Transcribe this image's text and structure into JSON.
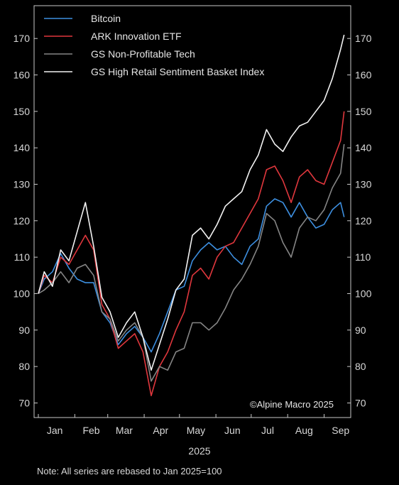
{
  "chart_data": {
    "type": "line",
    "xlabel": "2025",
    "x_ticks": [
      "Jan",
      "Feb",
      "Mar",
      "Apr",
      "May",
      "Jun",
      "Jul",
      "Aug",
      "Sep"
    ],
    "y_ticks": [
      70,
      80,
      90,
      100,
      110,
      120,
      130,
      140,
      150,
      160,
      170
    ],
    "ylim": [
      66,
      179
    ],
    "xlim": [
      "2025-01-01",
      "2025-09-20"
    ],
    "grid": false,
    "legend_position": "top-left",
    "credit": "©Alpine Macro 2025",
    "note": "Note: All series are rebased to Jan 2025=100",
    "series": [
      {
        "name": "Bitcoin",
        "color": "#3d8fe0",
        "points": [
          [
            "2025-01-01",
            100
          ],
          [
            "2025-01-06",
            104
          ],
          [
            "2025-01-13",
            106
          ],
          [
            "2025-01-20",
            111
          ],
          [
            "2025-01-27",
            107
          ],
          [
            "2025-02-03",
            104
          ],
          [
            "2025-02-10",
            103
          ],
          [
            "2025-02-17",
            103
          ],
          [
            "2025-02-24",
            95
          ],
          [
            "2025-03-03",
            92
          ],
          [
            "2025-03-10",
            86
          ],
          [
            "2025-03-17",
            89
          ],
          [
            "2025-03-24",
            91
          ],
          [
            "2025-03-31",
            88
          ],
          [
            "2025-04-07",
            84
          ],
          [
            "2025-04-14",
            89
          ],
          [
            "2025-04-21",
            95
          ],
          [
            "2025-04-28",
            101
          ],
          [
            "2025-05-05",
            102
          ],
          [
            "2025-05-12",
            109
          ],
          [
            "2025-05-19",
            112
          ],
          [
            "2025-05-26",
            114
          ],
          [
            "2025-06-02",
            112
          ],
          [
            "2025-06-09",
            113
          ],
          [
            "2025-06-16",
            110
          ],
          [
            "2025-06-23",
            108
          ],
          [
            "2025-06-30",
            113
          ],
          [
            "2025-07-07",
            115
          ],
          [
            "2025-07-14",
            124
          ],
          [
            "2025-07-21",
            126
          ],
          [
            "2025-07-28",
            125
          ],
          [
            "2025-08-04",
            121
          ],
          [
            "2025-08-11",
            125
          ],
          [
            "2025-08-18",
            121
          ],
          [
            "2025-08-25",
            118
          ],
          [
            "2025-09-01",
            119
          ],
          [
            "2025-09-08",
            123
          ],
          [
            "2025-09-15",
            125
          ],
          [
            "2025-09-18",
            121
          ]
        ]
      },
      {
        "name": "ARK Innovation ETF",
        "color": "#e0373d",
        "points": [
          [
            "2025-01-01",
            100
          ],
          [
            "2025-01-06",
            105
          ],
          [
            "2025-01-13",
            103
          ],
          [
            "2025-01-20",
            110
          ],
          [
            "2025-01-27",
            108
          ],
          [
            "2025-02-03",
            112
          ],
          [
            "2025-02-10",
            116
          ],
          [
            "2025-02-17",
            112
          ],
          [
            "2025-02-24",
            97
          ],
          [
            "2025-03-03",
            93
          ],
          [
            "2025-03-10",
            85
          ],
          [
            "2025-03-17",
            87
          ],
          [
            "2025-03-24",
            89
          ],
          [
            "2025-03-31",
            84
          ],
          [
            "2025-04-07",
            72
          ],
          [
            "2025-04-14",
            80
          ],
          [
            "2025-04-21",
            84
          ],
          [
            "2025-04-28",
            90
          ],
          [
            "2025-05-05",
            95
          ],
          [
            "2025-05-12",
            105
          ],
          [
            "2025-05-19",
            107
          ],
          [
            "2025-05-26",
            104
          ],
          [
            "2025-06-02",
            110
          ],
          [
            "2025-06-09",
            113
          ],
          [
            "2025-06-16",
            114
          ],
          [
            "2025-06-23",
            118
          ],
          [
            "2025-06-30",
            122
          ],
          [
            "2025-07-07",
            126
          ],
          [
            "2025-07-14",
            134
          ],
          [
            "2025-07-21",
            135
          ],
          [
            "2025-07-28",
            131
          ],
          [
            "2025-08-04",
            125
          ],
          [
            "2025-08-11",
            132
          ],
          [
            "2025-08-18",
            134
          ],
          [
            "2025-08-25",
            131
          ],
          [
            "2025-09-01",
            130
          ],
          [
            "2025-09-08",
            136
          ],
          [
            "2025-09-15",
            142
          ],
          [
            "2025-09-18",
            150
          ]
        ]
      },
      {
        "name": "GS Non-Profitable Tech",
        "color": "#858585",
        "points": [
          [
            "2025-01-01",
            100
          ],
          [
            "2025-01-06",
            101
          ],
          [
            "2025-01-13",
            103
          ],
          [
            "2025-01-20",
            106
          ],
          [
            "2025-01-27",
            103
          ],
          [
            "2025-02-03",
            107
          ],
          [
            "2025-02-10",
            108
          ],
          [
            "2025-02-17",
            105
          ],
          [
            "2025-02-24",
            95
          ],
          [
            "2025-03-03",
            93
          ],
          [
            "2025-03-10",
            87
          ],
          [
            "2025-03-17",
            90
          ],
          [
            "2025-03-24",
            92
          ],
          [
            "2025-03-31",
            88
          ],
          [
            "2025-04-07",
            76
          ],
          [
            "2025-04-14",
            80
          ],
          [
            "2025-04-21",
            79
          ],
          [
            "2025-04-28",
            84
          ],
          [
            "2025-05-05",
            85
          ],
          [
            "2025-05-12",
            92
          ],
          [
            "2025-05-19",
            92
          ],
          [
            "2025-05-26",
            90
          ],
          [
            "2025-06-02",
            92
          ],
          [
            "2025-06-09",
            96
          ],
          [
            "2025-06-16",
            101
          ],
          [
            "2025-06-23",
            104
          ],
          [
            "2025-06-30",
            108
          ],
          [
            "2025-07-07",
            113
          ],
          [
            "2025-07-14",
            122
          ],
          [
            "2025-07-21",
            120
          ],
          [
            "2025-07-28",
            114
          ],
          [
            "2025-08-04",
            110
          ],
          [
            "2025-08-11",
            118
          ],
          [
            "2025-08-18",
            121
          ],
          [
            "2025-08-25",
            120
          ],
          [
            "2025-09-01",
            123
          ],
          [
            "2025-09-08",
            129
          ],
          [
            "2025-09-15",
            133
          ],
          [
            "2025-09-18",
            141
          ]
        ]
      },
      {
        "name": "GS High Retail Sentiment Basket Index",
        "color": "#f2f2f2",
        "points": [
          [
            "2025-01-01",
            100
          ],
          [
            "2025-01-06",
            106
          ],
          [
            "2025-01-13",
            102
          ],
          [
            "2025-01-20",
            112
          ],
          [
            "2025-01-27",
            109
          ],
          [
            "2025-02-03",
            117
          ],
          [
            "2025-02-10",
            125
          ],
          [
            "2025-02-17",
            113
          ],
          [
            "2025-02-24",
            99
          ],
          [
            "2025-03-03",
            95
          ],
          [
            "2025-03-10",
            88
          ],
          [
            "2025-03-17",
            92
          ],
          [
            "2025-03-24",
            95
          ],
          [
            "2025-03-31",
            88
          ],
          [
            "2025-04-07",
            79
          ],
          [
            "2025-04-14",
            86
          ],
          [
            "2025-04-21",
            93
          ],
          [
            "2025-04-28",
            101
          ],
          [
            "2025-05-05",
            104
          ],
          [
            "2025-05-12",
            116
          ],
          [
            "2025-05-19",
            118
          ],
          [
            "2025-05-26",
            115
          ],
          [
            "2025-06-02",
            119
          ],
          [
            "2025-06-09",
            124
          ],
          [
            "2025-06-16",
            126
          ],
          [
            "2025-06-23",
            128
          ],
          [
            "2025-06-30",
            134
          ],
          [
            "2025-07-07",
            138
          ],
          [
            "2025-07-14",
            145
          ],
          [
            "2025-07-21",
            141
          ],
          [
            "2025-07-28",
            139
          ],
          [
            "2025-08-04",
            143
          ],
          [
            "2025-08-11",
            146
          ],
          [
            "2025-08-18",
            147
          ],
          [
            "2025-08-25",
            150
          ],
          [
            "2025-09-01",
            153
          ],
          [
            "2025-09-08",
            159
          ],
          [
            "2025-09-15",
            167
          ],
          [
            "2025-09-18",
            171
          ]
        ]
      }
    ]
  }
}
